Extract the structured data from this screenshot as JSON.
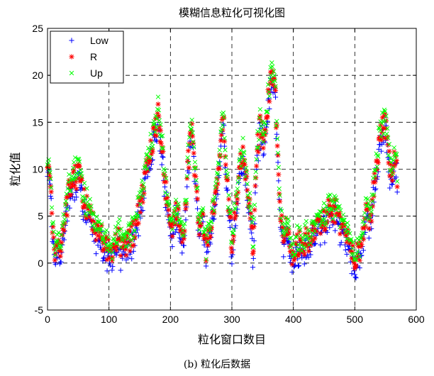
{
  "chart_data": {
    "type": "scatter",
    "title": "模糊信息粒化可视化图",
    "xlabel": "粒化窗口数目",
    "ylabel": "粒化值",
    "xlim": [
      0,
      600
    ],
    "ylim": [
      -5,
      25
    ],
    "xticks": [
      0,
      100,
      200,
      300,
      400,
      500,
      600
    ],
    "yticks": [
      -5,
      0,
      5,
      10,
      15,
      20,
      25
    ],
    "grid": true,
    "grid_style": "dashed",
    "legend_position": "top-left",
    "series": [
      {
        "name": "Low",
        "marker": "plus",
        "color": "#0000ff",
        "offset": -1.2
      },
      {
        "name": "R",
        "marker": "asterisk",
        "color": "#ff0000",
        "offset": 0.0
      },
      {
        "name": "Up",
        "marker": "x",
        "color": "#00ff00",
        "offset": 0.8
      }
    ],
    "x_count": 570,
    "profile": [
      [
        0,
        9.5
      ],
      [
        4,
        10.2
      ],
      [
        8,
        3.5
      ],
      [
        12,
        1.2
      ],
      [
        16,
        2.0
      ],
      [
        20,
        1.0
      ],
      [
        25,
        3.5
      ],
      [
        30,
        5.5
      ],
      [
        35,
        7.5
      ],
      [
        40,
        8.5
      ],
      [
        45,
        9.0
      ],
      [
        52,
        9.8
      ],
      [
        58,
        7.0
      ],
      [
        65,
        5.5
      ],
      [
        72,
        4.5
      ],
      [
        80,
        3.5
      ],
      [
        90,
        2.5
      ],
      [
        100,
        1.5
      ],
      [
        108,
        1.2
      ],
      [
        115,
        3.0
      ],
      [
        122,
        1.2
      ],
      [
        130,
        2.0
      ],
      [
        138,
        3.0
      ],
      [
        145,
        4.5
      ],
      [
        152,
        7.0
      ],
      [
        160,
        9.5
      ],
      [
        168,
        12.0
      ],
      [
        175,
        14.5
      ],
      [
        180,
        15.5
      ],
      [
        186,
        12.0
      ],
      [
        192,
        8.0
      ],
      [
        198,
        5.0
      ],
      [
        204,
        3.0
      ],
      [
        210,
        6.0
      ],
      [
        216,
        4.0
      ],
      [
        222,
        2.5
      ],
      [
        228,
        10.0
      ],
      [
        234,
        14.5
      ],
      [
        240,
        10.0
      ],
      [
        246,
        4.0
      ],
      [
        252,
        6.0
      ],
      [
        258,
        1.0
      ],
      [
        264,
        3.0
      ],
      [
        270,
        6.0
      ],
      [
        276,
        8.0
      ],
      [
        282,
        12.0
      ],
      [
        286,
        16.0
      ],
      [
        290,
        10.0
      ],
      [
        294,
        7.0
      ],
      [
        300,
        2.0
      ],
      [
        306,
        6.0
      ],
      [
        312,
        10.0
      ],
      [
        318,
        12.0
      ],
      [
        324,
        8.0
      ],
      [
        330,
        5.0
      ],
      [
        335,
        1.5
      ],
      [
        340,
        11.0
      ],
      [
        346,
        15.0
      ],
      [
        352,
        13.0
      ],
      [
        358,
        16.5
      ],
      [
        364,
        20.0
      ],
      [
        370,
        19.0
      ],
      [
        374,
        12.0
      ],
      [
        378,
        6.0
      ],
      [
        384,
        2.0
      ],
      [
        390,
        4.0
      ],
      [
        396,
        1.0
      ],
      [
        402,
        1.5
      ],
      [
        408,
        2.0
      ],
      [
        416,
        2.0
      ],
      [
        424,
        2.5
      ],
      [
        432,
        3.0
      ],
      [
        440,
        3.5
      ],
      [
        448,
        4.5
      ],
      [
        456,
        5.5
      ],
      [
        464,
        5.0
      ],
      [
        470,
        6.0
      ],
      [
        476,
        4.0
      ],
      [
        482,
        3.0
      ],
      [
        490,
        2.5
      ],
      [
        496,
        1.0
      ],
      [
        502,
        0.5
      ],
      [
        508,
        1.5
      ],
      [
        514,
        3.0
      ],
      [
        520,
        6.0
      ],
      [
        526,
        4.0
      ],
      [
        532,
        9.0
      ],
      [
        538,
        12.0
      ],
      [
        544,
        14.0
      ],
      [
        550,
        15.0
      ],
      [
        556,
        11.0
      ],
      [
        560,
        9.0
      ],
      [
        566,
        12.0
      ],
      [
        570,
        8.0
      ]
    ]
  },
  "caption": "(b) 粒化后数据"
}
